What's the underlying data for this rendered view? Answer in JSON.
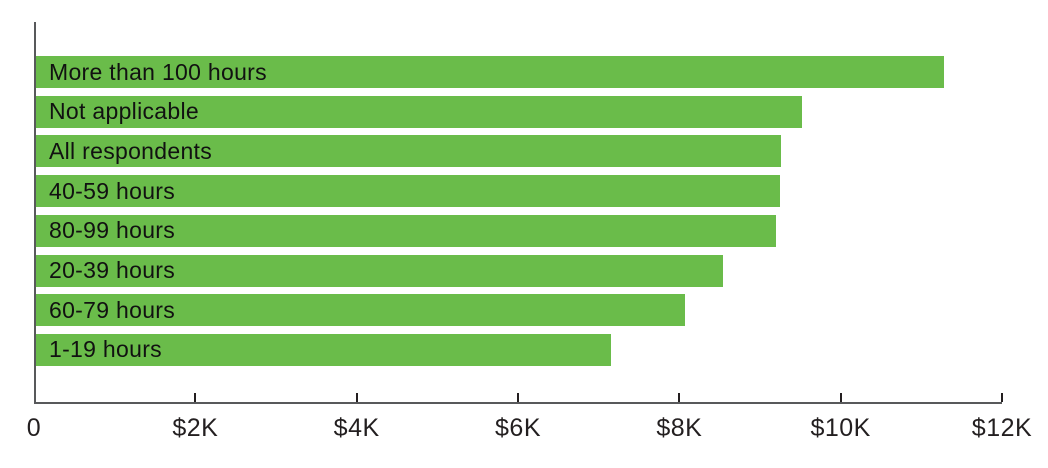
{
  "chart_data": {
    "type": "bar",
    "orientation": "horizontal",
    "title": "",
    "xlabel": "",
    "ylabel": "",
    "categories": [
      "More than 100 hours",
      "Not applicable",
      "All respondents",
      "40-59 hours",
      "80-99 hours",
      "20-39 hours",
      "60-79 hours",
      "1-19 hours"
    ],
    "values": [
      11280,
      9520,
      9260,
      9240,
      9190,
      8540,
      8060,
      7140
    ],
    "value_unit": "USD",
    "xlim": [
      0,
      12000
    ],
    "x_ticks": [
      {
        "label": "0",
        "value": 0
      },
      {
        "label": "$2K",
        "value": 2000
      },
      {
        "label": "$4K",
        "value": 4000
      },
      {
        "label": "$6K",
        "value": 6000
      },
      {
        "label": "$8K",
        "value": 8000
      },
      {
        "label": "$10K",
        "value": 10000
      },
      {
        "label": "$12K",
        "value": 12000
      }
    ],
    "grid": false,
    "legend": false,
    "bar_labels_inside": true,
    "colors": {
      "bar": "#6abc4a",
      "axis_line": "#58595b",
      "tick_mark": "#231f20",
      "tick_text": "#231f20",
      "bar_text": "#111111"
    }
  }
}
